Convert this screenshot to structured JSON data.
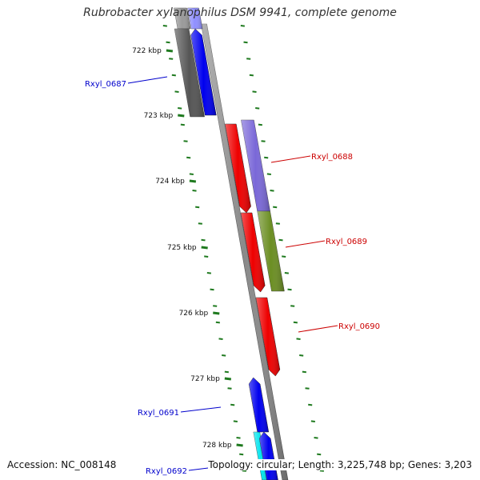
{
  "title": "Rubrobacter xylanophilus DSM 9941, complete genome",
  "footer": {
    "accession": "Accession: NC_008148",
    "topology": "Topology: circular; Length: 3,225,748 bp; Genes: 3,203"
  },
  "colors": {
    "backbone": "#8a8a8a",
    "tick": "#1f7a1f",
    "forward_label": "#cc0000",
    "reverse_label": "#0000cc"
  },
  "ticks": [
    "722 kbp",
    "723 kbp",
    "724 kbp",
    "725 kbp",
    "726 kbp",
    "727 kbp",
    "728 kbp"
  ],
  "genes": [
    {
      "locus": "Rxyl_0687",
      "strand": "reverse",
      "color": "#0000ee"
    },
    {
      "locus": "Rxyl_0688",
      "strand": "forward",
      "color": "#ee0000"
    },
    {
      "locus": "Rxyl_0689",
      "strand": "forward",
      "color": "#ee0000"
    },
    {
      "locus": "Rxyl_0690",
      "strand": "forward",
      "color": "#ee0000"
    },
    {
      "locus": "Rxyl_0691",
      "strand": "reverse",
      "color": "#0000ee"
    },
    {
      "locus": "Rxyl_0692",
      "strand": "reverse",
      "color": "#0000ee"
    }
  ],
  "cog_bars": [
    "#555555",
    "#0000ee",
    "#7a68d8",
    "#6b8e23",
    "#ee0000",
    "#00e5ee"
  ]
}
